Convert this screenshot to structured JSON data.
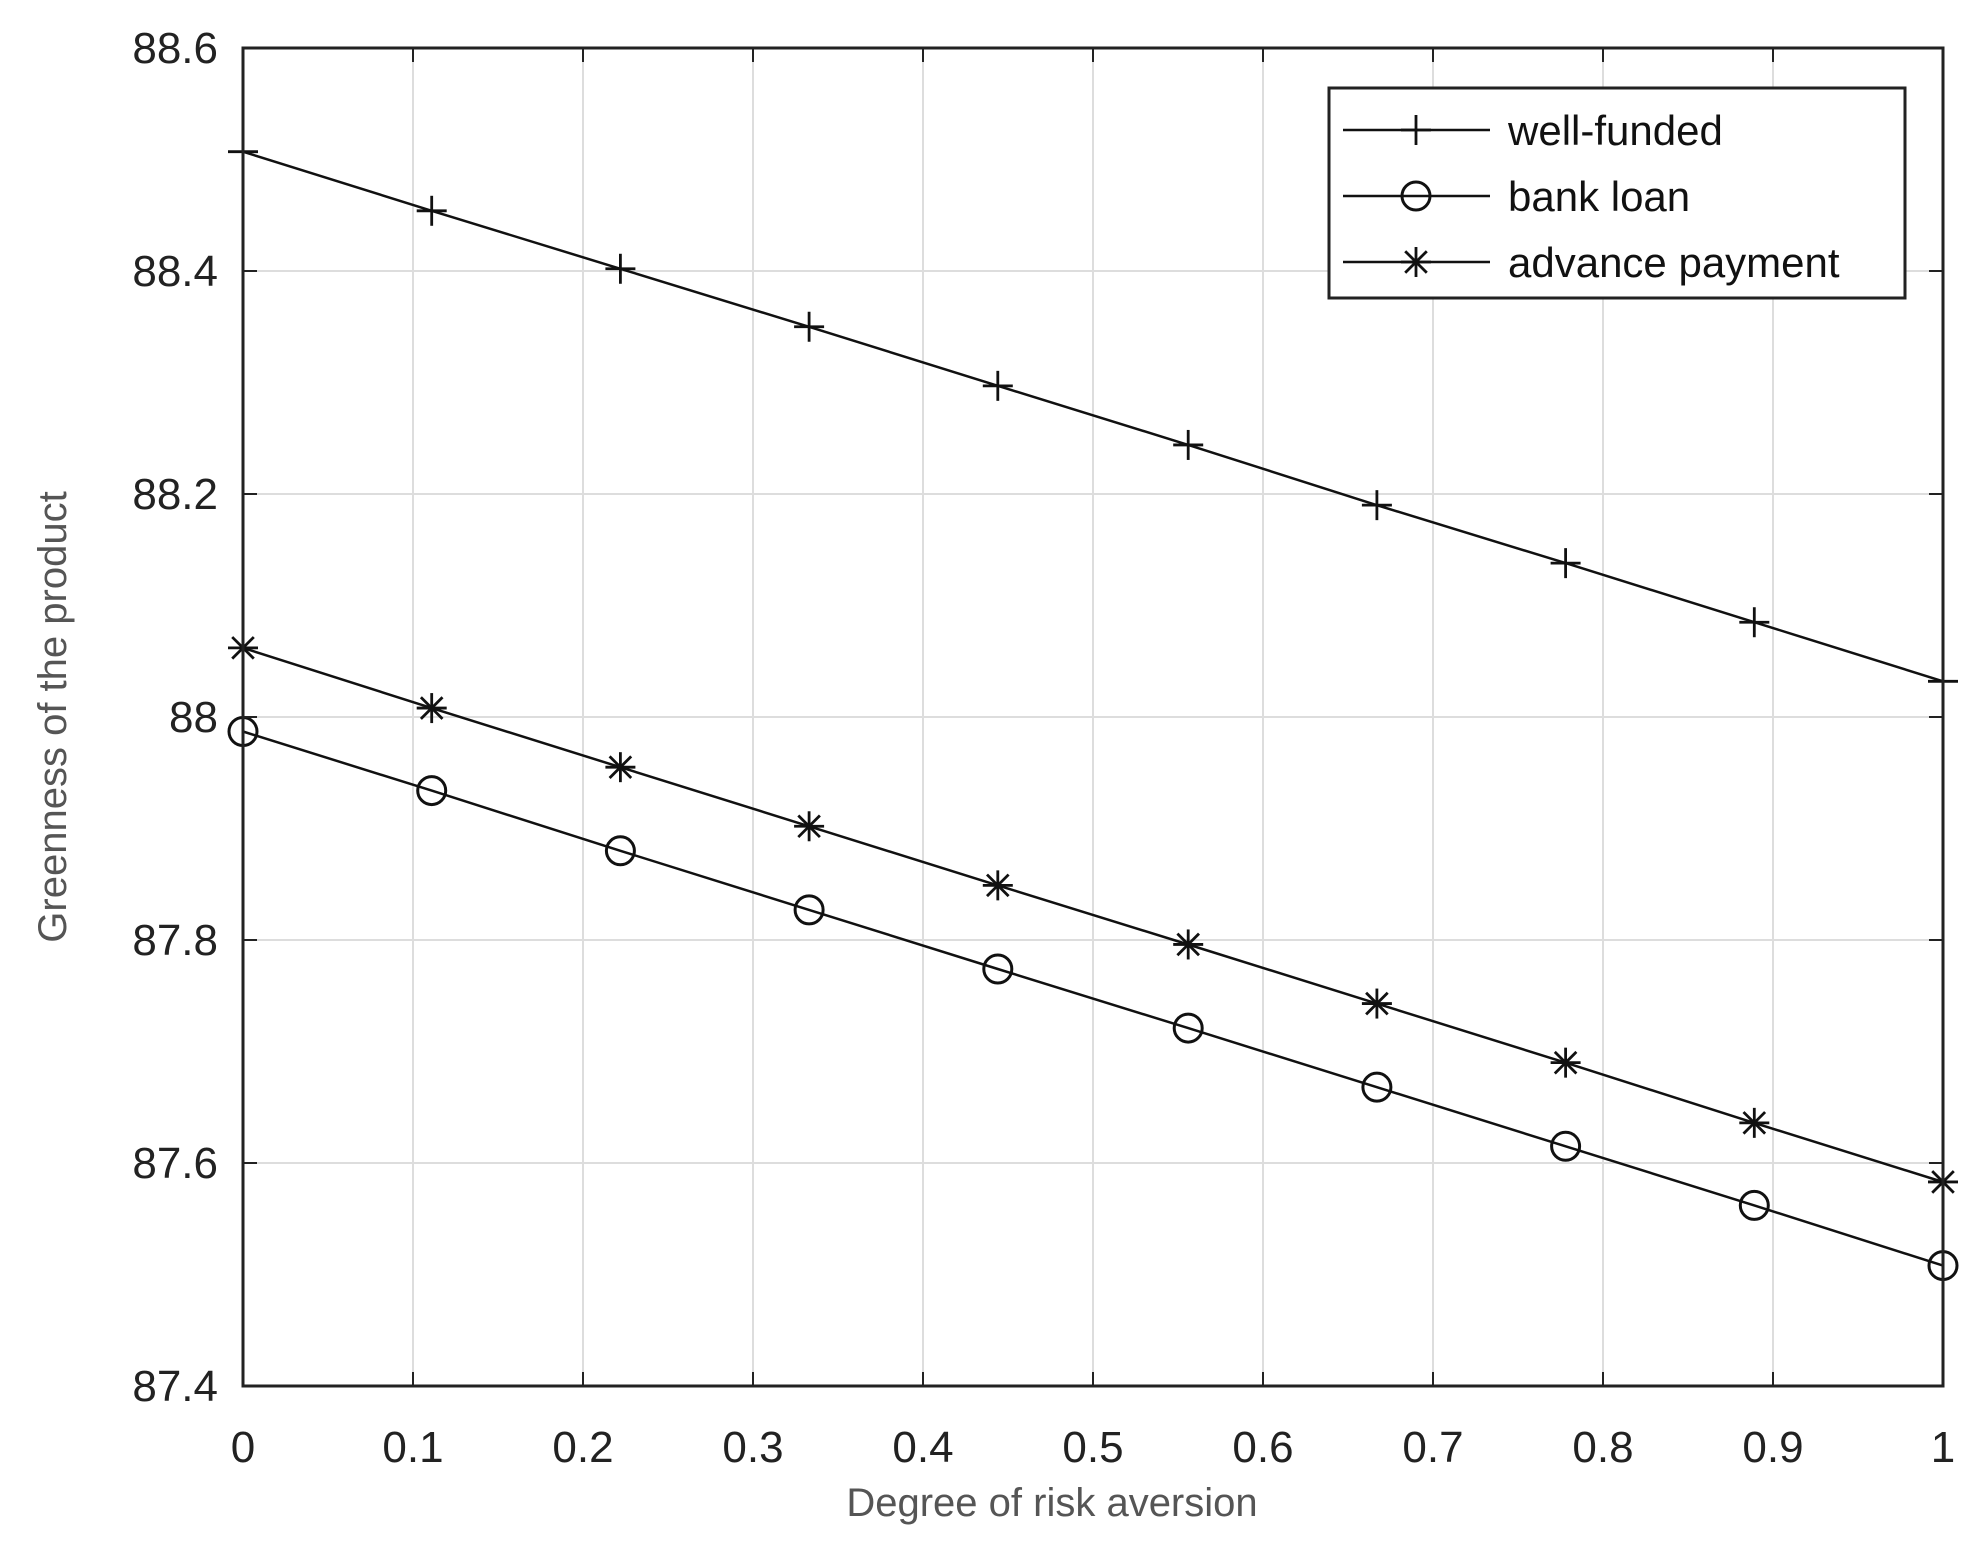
{
  "chart_data": {
    "type": "line",
    "title": "",
    "xlabel": "Degree of risk aversion",
    "ylabel": "Greenness of the product",
    "xlim": [
      0,
      1
    ],
    "ylim": [
      87.4,
      88.6
    ],
    "x_ticks": [
      "0",
      "0.1",
      "0.2",
      "0.3",
      "0.4",
      "0.5",
      "0.6",
      "0.7",
      "0.8",
      "0.9",
      "1"
    ],
    "y_ticks": [
      "87.4",
      "87.6",
      "87.8",
      "88",
      "88.2",
      "88.4",
      "88.6"
    ],
    "grid": true,
    "legend_position": "top-right",
    "colors": {
      "line": "#111111",
      "grid": "#dddddd",
      "axis": "#222222"
    },
    "x": [
      0,
      0.111,
      0.222,
      0.333,
      0.444,
      0.556,
      0.667,
      0.778,
      0.889,
      1
    ],
    "series": [
      {
        "name": "well-funded",
        "marker": "plus",
        "values": [
          88.507,
          88.454,
          88.402,
          88.35,
          88.297,
          88.244,
          88.19,
          88.138,
          88.085,
          88.032
        ]
      },
      {
        "name": "bank loan",
        "marker": "circle",
        "values": [
          87.987,
          87.934,
          87.88,
          87.827,
          87.774,
          87.721,
          87.668,
          87.615,
          87.562,
          87.508
        ]
      },
      {
        "name": "advance payment",
        "marker": "star",
        "values": [
          88.062,
          88.008,
          87.955,
          87.902,
          87.849,
          87.796,
          87.743,
          87.69,
          87.636,
          87.583
        ]
      }
    ]
  }
}
